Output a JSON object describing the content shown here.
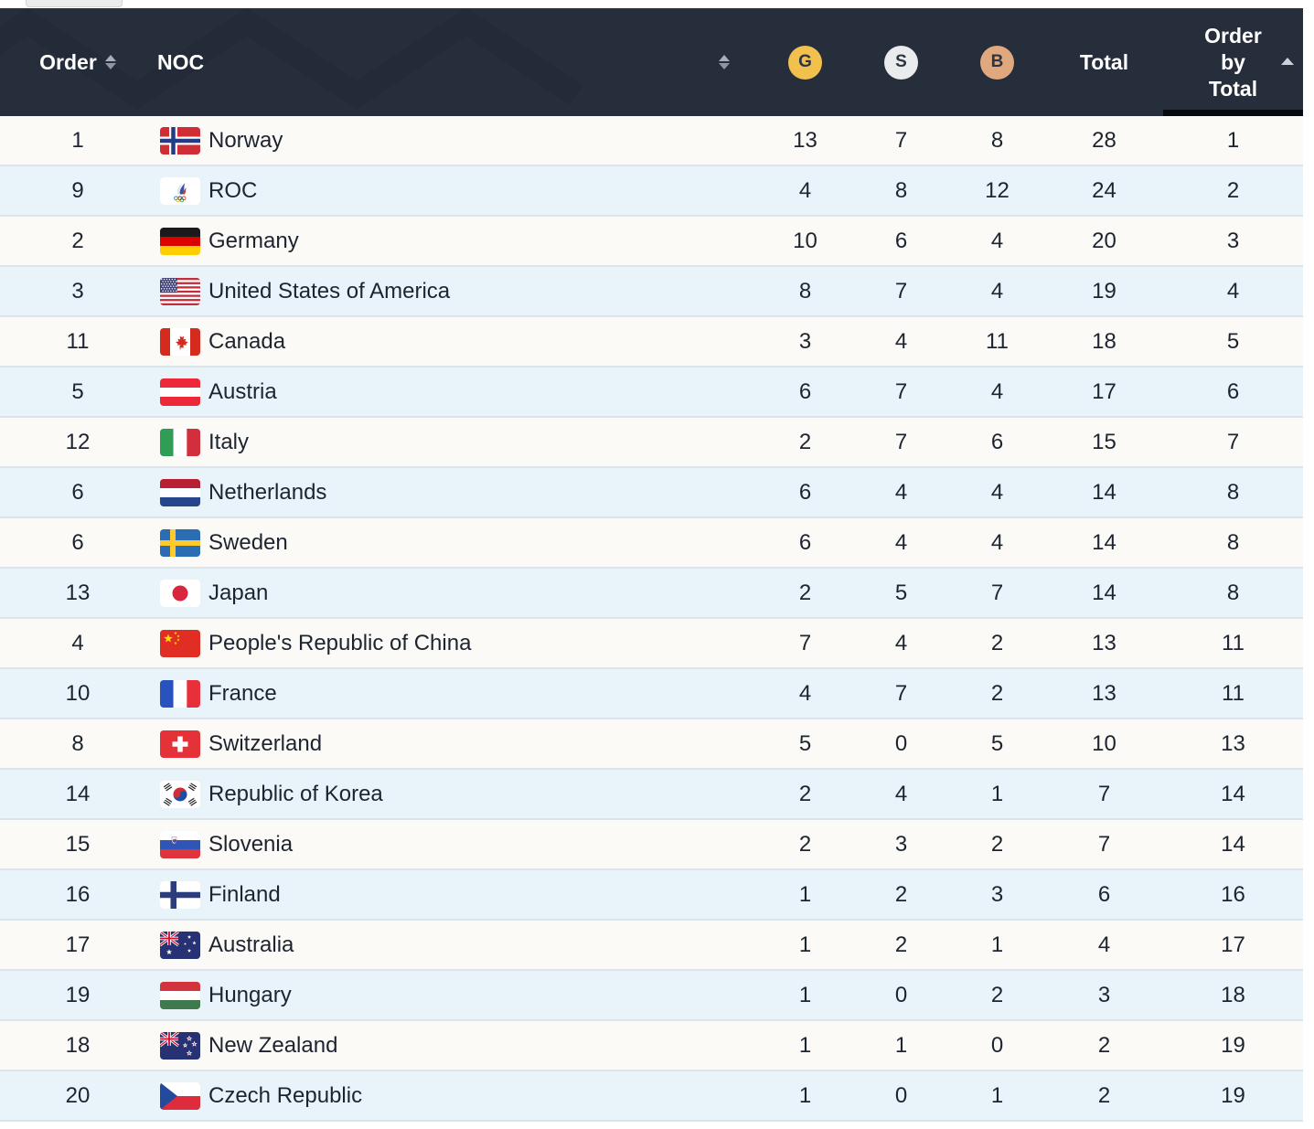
{
  "header": {
    "bg_color": "#262e3b",
    "active_sort_bar_color": "#070a0e",
    "columns": {
      "order": {
        "label": "Order",
        "sort_icon": "up-down"
      },
      "noc": {
        "label": "NOC",
        "sort_icon": "up-down"
      },
      "gold": {
        "label": "G",
        "circle_color": "#f2c14d"
      },
      "silver": {
        "label": "S",
        "circle_color": "#e9ebed"
      },
      "bronze": {
        "label": "B",
        "circle_color": "#e0a87e"
      },
      "total": {
        "label": "Total"
      },
      "order_by_total": {
        "label": "Order by Total",
        "sort_state": "ascending"
      }
    }
  },
  "table": {
    "row_colors": {
      "odd": "#fbfaf7",
      "even": "#e9f4fa"
    },
    "rows": [
      {
        "order": "1",
        "flag_icon": "flag-norway",
        "noc": "Norway",
        "gold": "13",
        "silver": "7",
        "bronze": "8",
        "total": "28",
        "order_by_total": "1"
      },
      {
        "order": "9",
        "flag_icon": "flag-roc",
        "noc": "ROC",
        "gold": "4",
        "silver": "8",
        "bronze": "12",
        "total": "24",
        "order_by_total": "2"
      },
      {
        "order": "2",
        "flag_icon": "flag-germany",
        "noc": "Germany",
        "gold": "10",
        "silver": "6",
        "bronze": "4",
        "total": "20",
        "order_by_total": "3"
      },
      {
        "order": "3",
        "flag_icon": "flag-usa",
        "noc": "United States of America",
        "gold": "8",
        "silver": "7",
        "bronze": "4",
        "total": "19",
        "order_by_total": "4"
      },
      {
        "order": "11",
        "flag_icon": "flag-canada",
        "noc": "Canada",
        "gold": "3",
        "silver": "4",
        "bronze": "11",
        "total": "18",
        "order_by_total": "5"
      },
      {
        "order": "5",
        "flag_icon": "flag-austria",
        "noc": "Austria",
        "gold": "6",
        "silver": "7",
        "bronze": "4",
        "total": "17",
        "order_by_total": "6"
      },
      {
        "order": "12",
        "flag_icon": "flag-italy",
        "noc": "Italy",
        "gold": "2",
        "silver": "7",
        "bronze": "6",
        "total": "15",
        "order_by_total": "7"
      },
      {
        "order": "6",
        "flag_icon": "flag-netherlands",
        "noc": "Netherlands",
        "gold": "6",
        "silver": "4",
        "bronze": "4",
        "total": "14",
        "order_by_total": "8"
      },
      {
        "order": "6",
        "flag_icon": "flag-sweden",
        "noc": "Sweden",
        "gold": "6",
        "silver": "4",
        "bronze": "4",
        "total": "14",
        "order_by_total": "8"
      },
      {
        "order": "13",
        "flag_icon": "flag-japan",
        "noc": "Japan",
        "gold": "2",
        "silver": "5",
        "bronze": "7",
        "total": "14",
        "order_by_total": "8"
      },
      {
        "order": "4",
        "flag_icon": "flag-china",
        "noc": "People's Republic of China",
        "gold": "7",
        "silver": "4",
        "bronze": "2",
        "total": "13",
        "order_by_total": "11"
      },
      {
        "order": "10",
        "flag_icon": "flag-france",
        "noc": "France",
        "gold": "4",
        "silver": "7",
        "bronze": "2",
        "total": "13",
        "order_by_total": "11"
      },
      {
        "order": "8",
        "flag_icon": "flag-switzerland",
        "noc": "Switzerland",
        "gold": "5",
        "silver": "0",
        "bronze": "5",
        "total": "10",
        "order_by_total": "13"
      },
      {
        "order": "14",
        "flag_icon": "flag-korea",
        "noc": "Republic of Korea",
        "gold": "2",
        "silver": "4",
        "bronze": "1",
        "total": "7",
        "order_by_total": "14"
      },
      {
        "order": "15",
        "flag_icon": "flag-slovenia",
        "noc": "Slovenia",
        "gold": "2",
        "silver": "3",
        "bronze": "2",
        "total": "7",
        "order_by_total": "14"
      },
      {
        "order": "16",
        "flag_icon": "flag-finland",
        "noc": "Finland",
        "gold": "1",
        "silver": "2",
        "bronze": "3",
        "total": "6",
        "order_by_total": "16"
      },
      {
        "order": "17",
        "flag_icon": "flag-australia",
        "noc": "Australia",
        "gold": "1",
        "silver": "2",
        "bronze": "1",
        "total": "4",
        "order_by_total": "17"
      },
      {
        "order": "19",
        "flag_icon": "flag-hungary",
        "noc": "Hungary",
        "gold": "1",
        "silver": "0",
        "bronze": "2",
        "total": "3",
        "order_by_total": "18"
      },
      {
        "order": "18",
        "flag_icon": "flag-new-zealand",
        "noc": "New Zealand",
        "gold": "1",
        "silver": "1",
        "bronze": "0",
        "total": "2",
        "order_by_total": "19"
      },
      {
        "order": "20",
        "flag_icon": "flag-czech-republic",
        "noc": "Czech Republic",
        "gold": "1",
        "silver": "0",
        "bronze": "1",
        "total": "2",
        "order_by_total": "19"
      }
    ]
  }
}
